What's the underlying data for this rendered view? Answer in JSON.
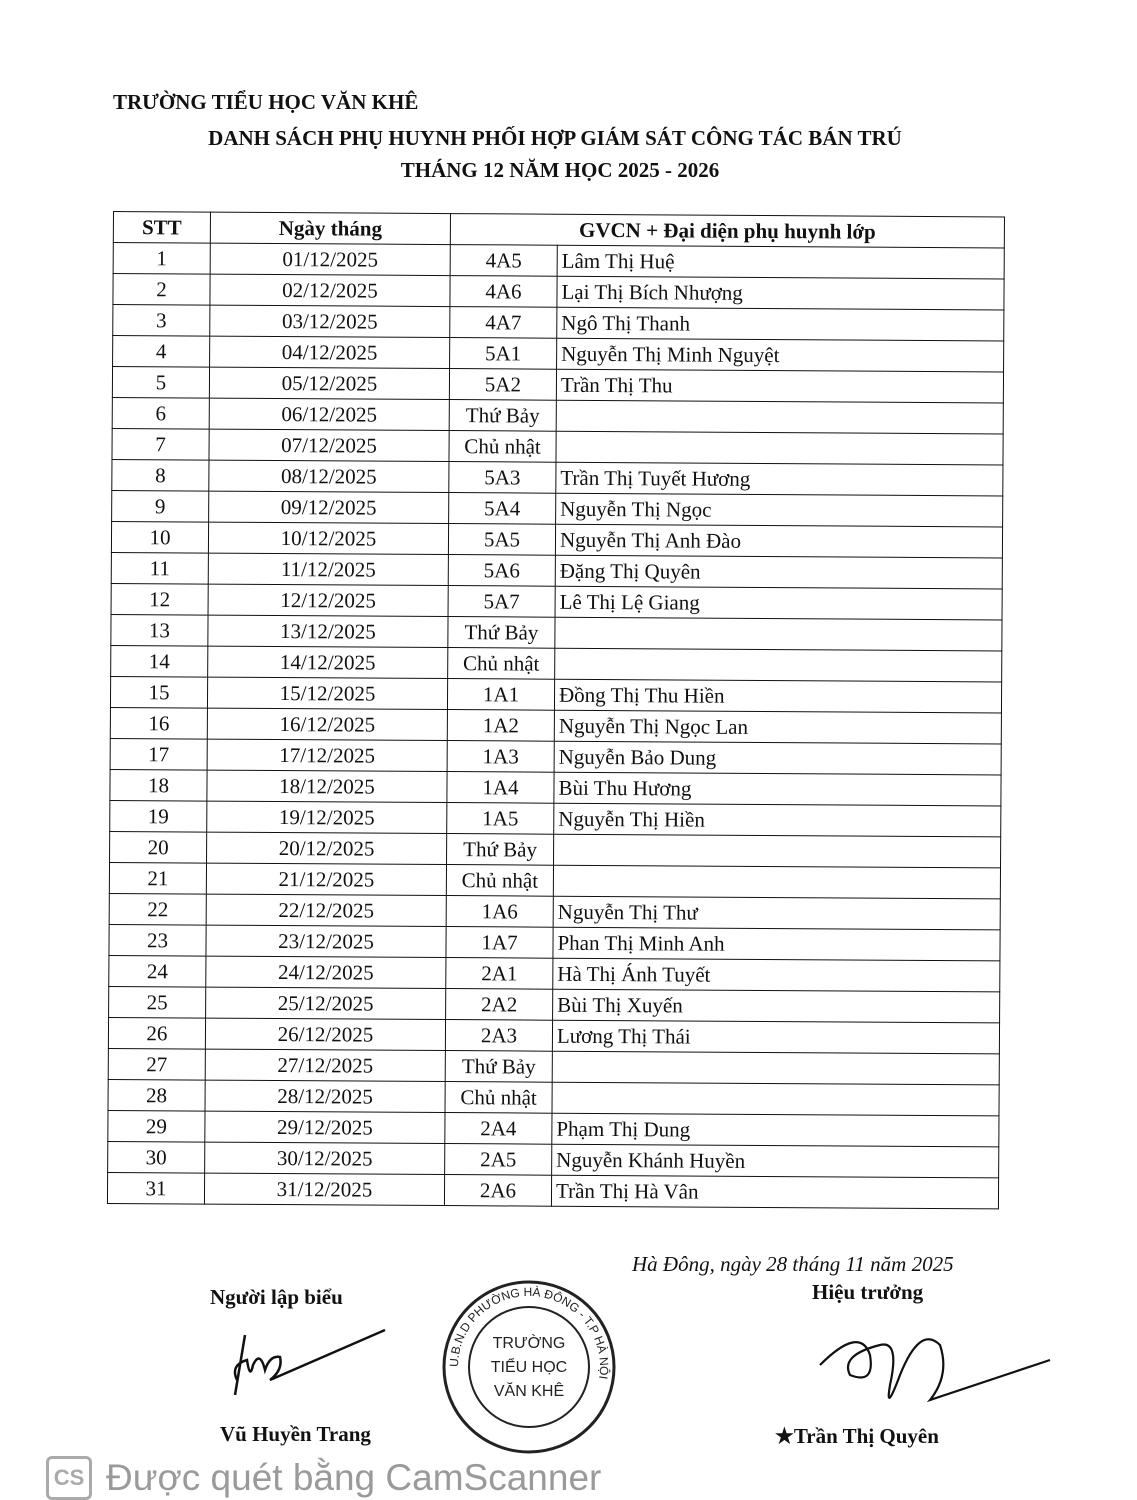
{
  "header": {
    "school": "TRƯỜNG TIỂU HỌC VĂN KHÊ",
    "title": "DANH SÁCH PHỤ HUYNH PHỐI HỢP GIÁM SÁT CÔNG TÁC BÁN TRÚ",
    "subtitle": "THÁNG 12 NĂM HỌC 2025 - 2026"
  },
  "table": {
    "columns": [
      "STT",
      "Ngày tháng",
      "GVCN + Đại diện phụ huynh lớp"
    ],
    "rows": [
      [
        "1",
        "01/12/2025",
        "4A5",
        "Lâm Thị Huệ"
      ],
      [
        "2",
        "02/12/2025",
        "4A6",
        "Lại Thị Bích Nhượng"
      ],
      [
        "3",
        "03/12/2025",
        "4A7",
        "Ngô Thị Thanh"
      ],
      [
        "4",
        "04/12/2025",
        "5A1",
        "Nguyễn Thị Minh Nguyệt"
      ],
      [
        "5",
        "05/12/2025",
        "5A2",
        "Trần Thị Thu"
      ],
      [
        "6",
        "06/12/2025",
        "Thứ Bảy",
        ""
      ],
      [
        "7",
        "07/12/2025",
        "Chủ nhật",
        ""
      ],
      [
        "8",
        "08/12/2025",
        "5A3",
        "Trần Thị Tuyết Hương"
      ],
      [
        "9",
        "09/12/2025",
        "5A4",
        "Nguyễn Thị Ngọc"
      ],
      [
        "10",
        "10/12/2025",
        "5A5",
        "Nguyễn Thị Anh Đào"
      ],
      [
        "11",
        "11/12/2025",
        "5A6",
        "Đặng Thị Quyên"
      ],
      [
        "12",
        "12/12/2025",
        "5A7",
        "Lê Thị Lệ Giang"
      ],
      [
        "13",
        "13/12/2025",
        "Thứ Bảy",
        ""
      ],
      [
        "14",
        "14/12/2025",
        "Chủ nhật",
        ""
      ],
      [
        "15",
        "15/12/2025",
        "1A1",
        "Đồng Thị Thu Hiền"
      ],
      [
        "16",
        "16/12/2025",
        "1A2",
        "Nguyễn Thị Ngọc Lan"
      ],
      [
        "17",
        "17/12/2025",
        "1A3",
        "Nguyễn Bảo Dung"
      ],
      [
        "18",
        "18/12/2025",
        "1A4",
        "Bùi Thu Hương"
      ],
      [
        "19",
        "19/12/2025",
        "1A5",
        "Nguyễn Thị Hiền"
      ],
      [
        "20",
        "20/12/2025",
        "Thứ Bảy",
        ""
      ],
      [
        "21",
        "21/12/2025",
        "Chủ nhật",
        ""
      ],
      [
        "22",
        "22/12/2025",
        "1A6",
        "Nguyễn Thị Thư"
      ],
      [
        "23",
        "23/12/2025",
        "1A7",
        "Phan Thị Minh Anh"
      ],
      [
        "24",
        "24/12/2025",
        "2A1",
        "Hà Thị Ánh Tuyết"
      ],
      [
        "25",
        "25/12/2025",
        "2A2",
        "Bùi Thị Xuyến"
      ],
      [
        "26",
        "26/12/2025",
        "2A3",
        "Lương Thị Thái"
      ],
      [
        "27",
        "27/12/2025",
        "Thứ Bảy",
        ""
      ],
      [
        "28",
        "28/12/2025",
        "Chủ nhật",
        ""
      ],
      [
        "29",
        "29/12/2025",
        "2A4",
        "Phạm Thị Dung"
      ],
      [
        "30",
        "30/12/2025",
        "2A5",
        "Nguyễn Khánh Huyền"
      ],
      [
        "31",
        "31/12/2025",
        "2A6",
        "Trần Thị Hà Vân"
      ]
    ]
  },
  "footer": {
    "place_date": "Hà Đông, ngày 28 tháng 11 năm 2025",
    "maker_title": "Người lập biểu",
    "maker_name": "Vũ Huyền Trang",
    "head_title": "Hiệu trưởng",
    "head_name": "Trần Thị Quyên"
  },
  "stamp": {
    "ring": "U.B.N.D PHƯỜNG HÀ ĐÔNG - T.P HÀ NỘI",
    "center": [
      "TRƯỜNG",
      "TIỂU HỌC",
      "VĂN KHÊ"
    ]
  },
  "watermark": {
    "logo": "CS",
    "text": "Được quét bằng CamScanner"
  }
}
